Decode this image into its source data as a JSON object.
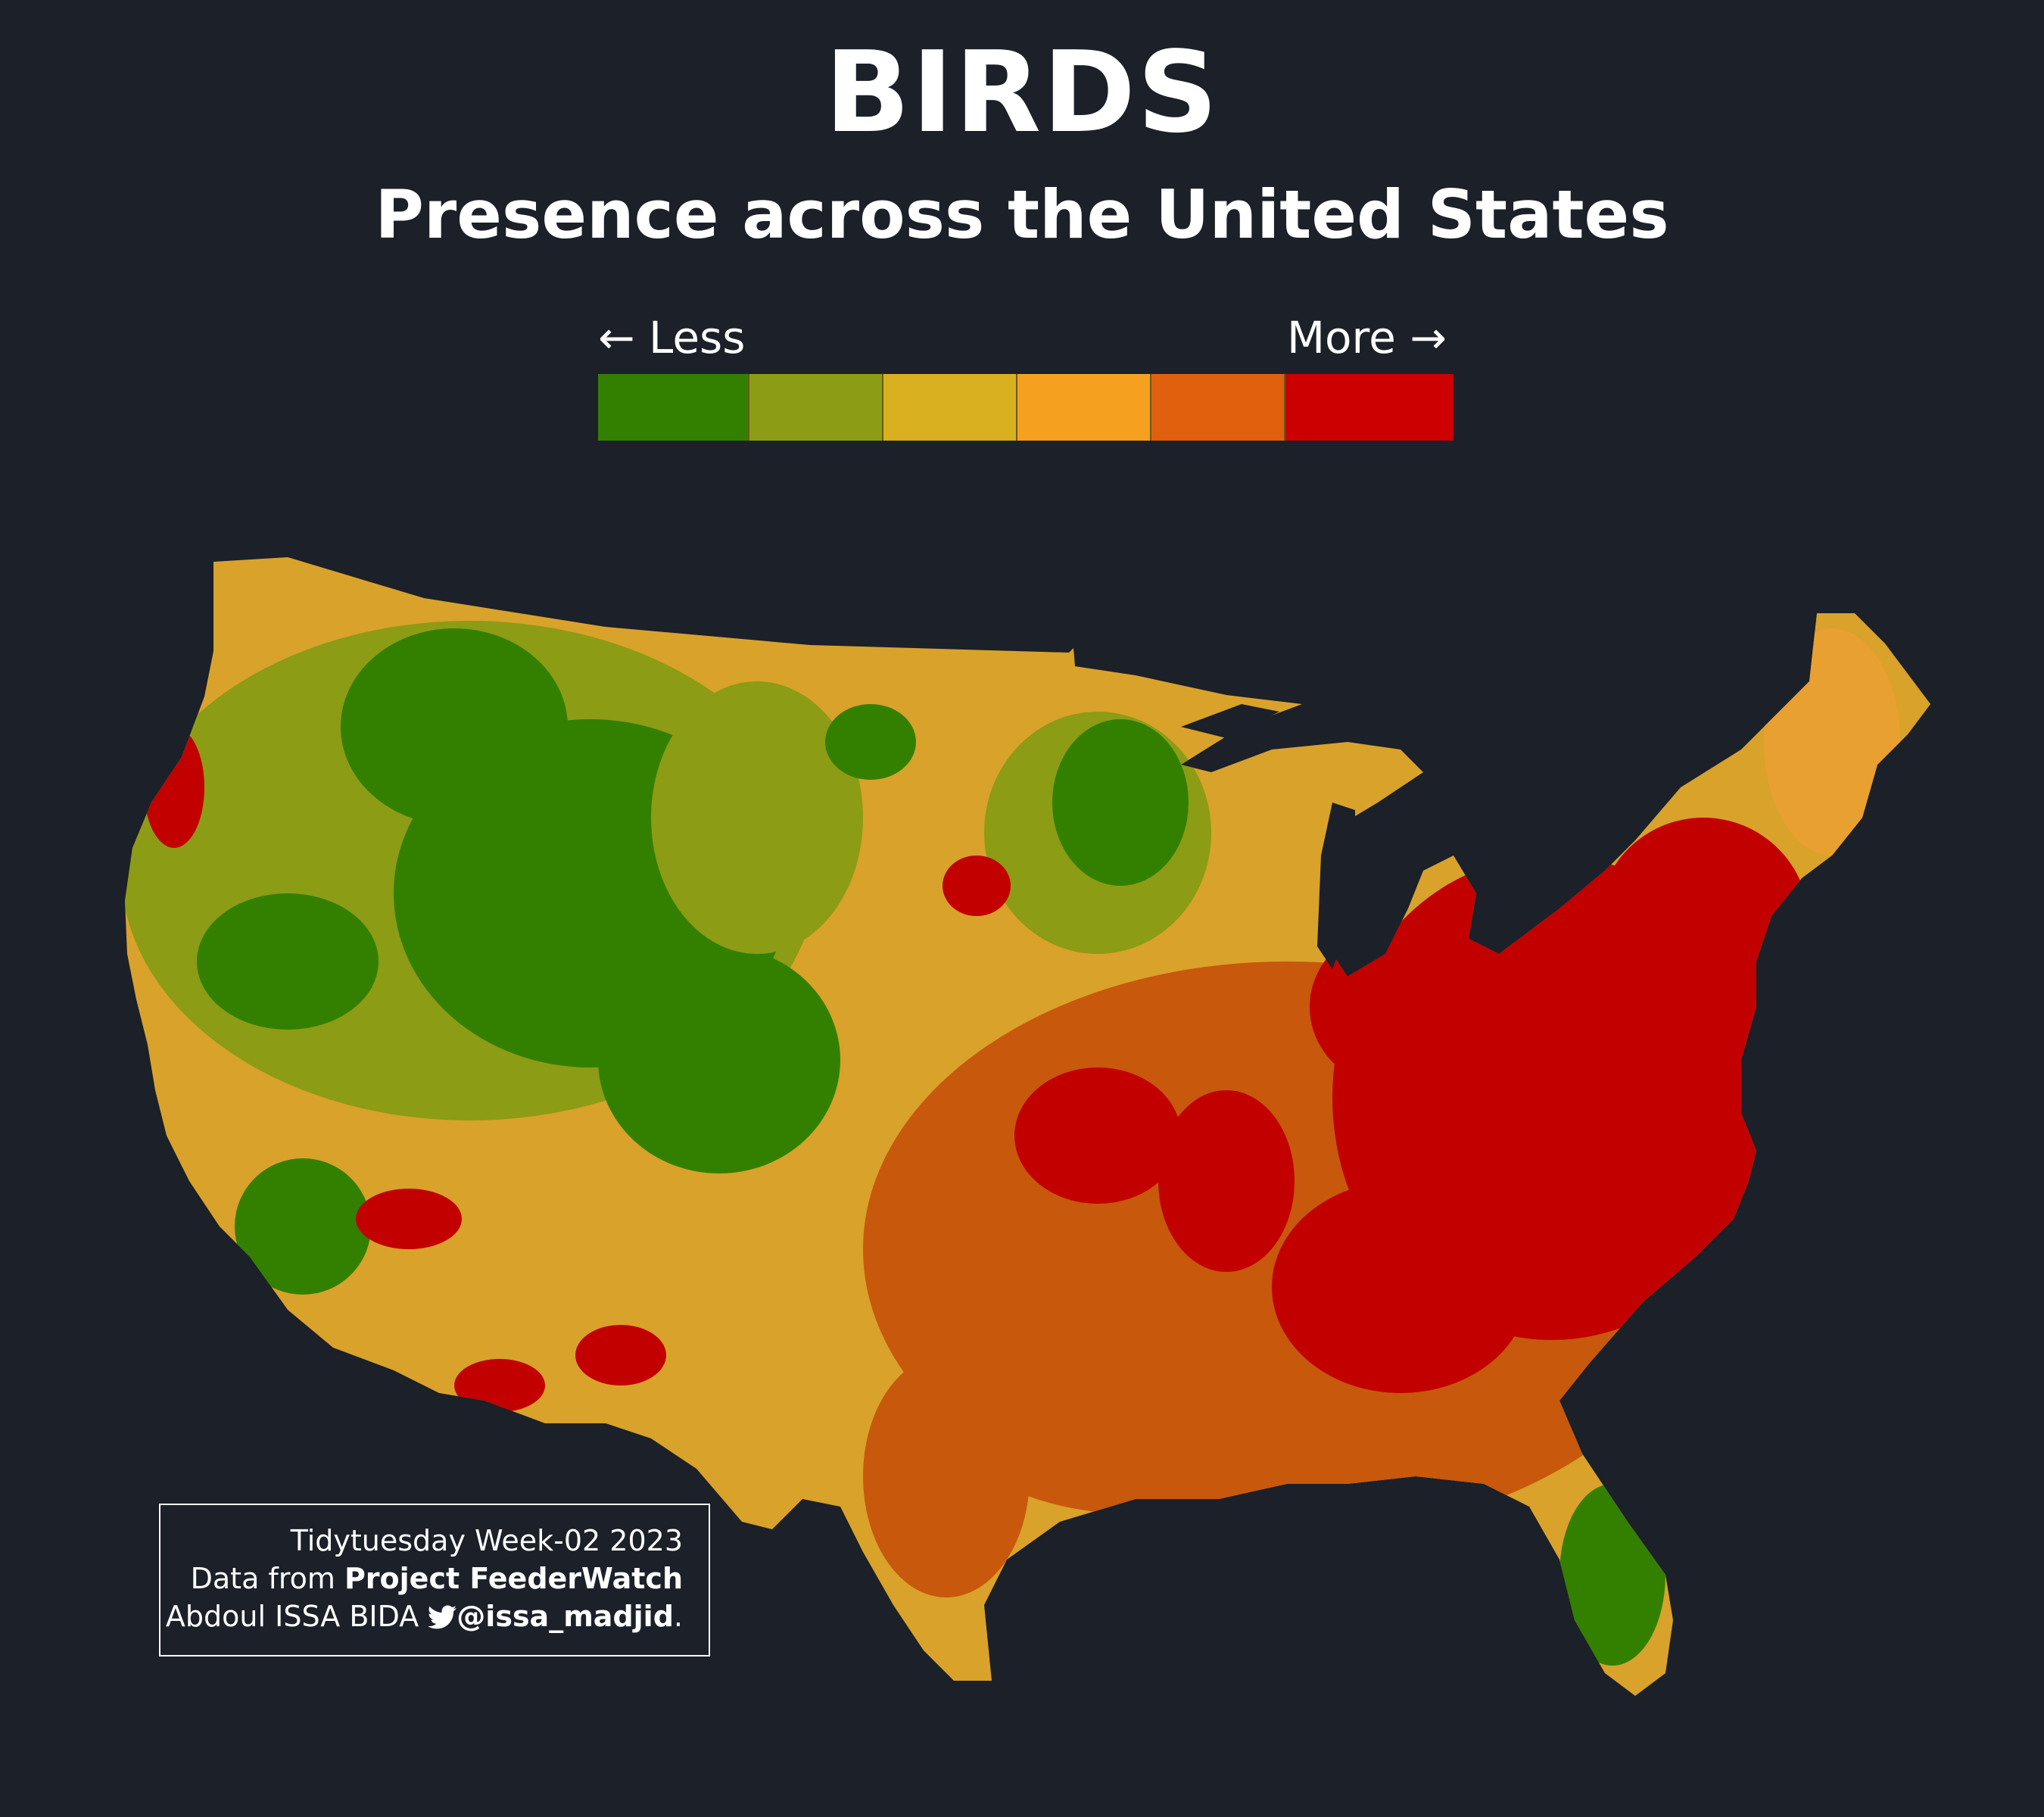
{
  "title": "BIRDS",
  "subtitle": "Presence across the United States",
  "legend": {
    "less_label": "← Less",
    "more_label": "More →",
    "colors": [
      "#338000",
      "#8c9c14",
      "#d8b020",
      "#f6a020",
      "#e0600e",
      "#cc0000"
    ]
  },
  "colors": {
    "background": "#1b2029",
    "green": "#338000",
    "olive": "#8c9c14",
    "yellow": "#d8b020",
    "light_orange": "#e8a030",
    "orange": "#d9731a",
    "deep_orange": "#c8580c",
    "red": "#c20000"
  },
  "credits": {
    "line1": "Tidytuesday Week-02 2023",
    "line2_prefix": "Data from ",
    "line2_bold": "Project FeederWatch",
    "line3_prefix": "Abdoul ISSA BIDA ",
    "twitter_icon": "twitter-bird-icon",
    "line3_handle": "@issa_madjid",
    "line3_suffix": "."
  }
}
